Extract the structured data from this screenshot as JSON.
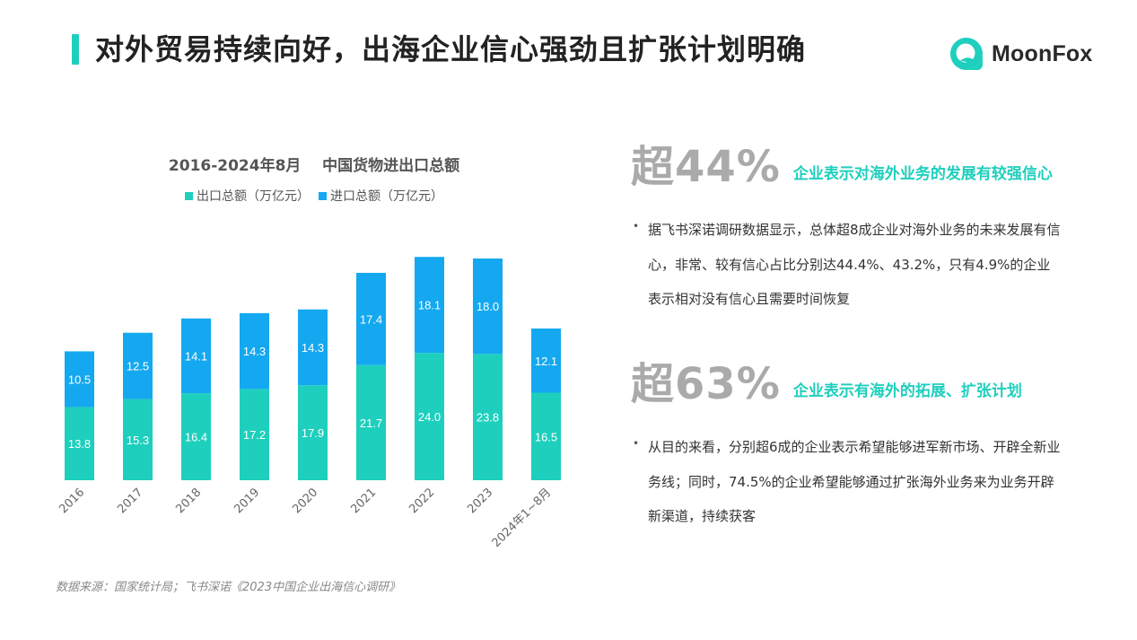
{
  "page": {
    "title": "对外贸易持续向好，出海企业信心强劲且扩张计划明确"
  },
  "logo": {
    "text": "MoonFox",
    "icon": "moonfox-logo-icon",
    "color": "#1ecfbd"
  },
  "colors": {
    "accent": "#1ecfbd",
    "export": "#1ecfbd",
    "import": "#14a8f0"
  },
  "chart_data": {
    "type": "bar",
    "stacked": true,
    "title": "2016-2024年8月    中国货物进出口总额",
    "categories": [
      "2016",
      "2017",
      "2018",
      "2019",
      "2020",
      "2021",
      "2022",
      "2023",
      "2024年1~8月"
    ],
    "series": [
      {
        "name": "出口总额（万亿元）",
        "color": "#1ecfbd",
        "values": [
          13.8,
          15.3,
          16.4,
          17.2,
          17.9,
          21.7,
          24.0,
          23.8,
          16.5
        ]
      },
      {
        "name": "进口总额（万亿元）",
        "color": "#14a8f0",
        "values": [
          10.5,
          12.5,
          14.1,
          14.3,
          14.3,
          17.4,
          18.1,
          18.0,
          12.1
        ]
      }
    ],
    "xlabel": "",
    "ylabel": "",
    "ylim": [
      0,
      44
    ],
    "grid": false,
    "legend_position": "top",
    "data_labels": true,
    "x_tick_rotation": -45
  },
  "source": "数据来源：国家统计局；飞书深诺《2023中国企业出海信心调研》",
  "highlights": [
    {
      "big": "超44%",
      "label": "企业表示对海外业务的发展有较强信心",
      "bullet": "据飞书深诺调研数据显示，总体超8成企业对海外业务的未来发展有信心，非常、较有信心占比分别达44.4%、43.2%，只有4.9%的企业表示相对没有信心且需要时间恢复"
    },
    {
      "big": "超63%",
      "label": "企业表示有海外的拓展、扩张计划",
      "bullet": "从目的来看，分别超6成的企业表示希望能够进军新市场、开辟全新业务线；同时，74.5%的企业希望能够通过扩张海外业务来为业务开辟新渠道，持续获客"
    }
  ]
}
